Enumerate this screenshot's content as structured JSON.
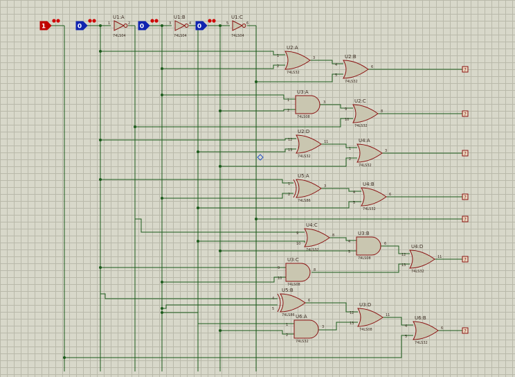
{
  "inputs": [
    {
      "id": "in1",
      "value": "1",
      "color": "#c00000"
    },
    {
      "id": "in2",
      "value": "0",
      "color": "#1024b0"
    },
    {
      "id": "in3",
      "value": "0",
      "color": "#1024b0"
    },
    {
      "id": "in4",
      "value": "0",
      "color": "#1024b0"
    }
  ],
  "inverters": [
    {
      "ref": "U1:A",
      "part": "74LS04",
      "pin_in": "1",
      "pin_out": "2"
    },
    {
      "ref": "U1:B",
      "part": "74LS04",
      "pin_in": "3",
      "pin_out": "4"
    },
    {
      "ref": "U1:C",
      "part": "74LS04",
      "pin_in": "5",
      "pin_out": "6"
    }
  ],
  "gates": [
    {
      "ref": "U2:A",
      "part": "74LS32",
      "pins": [
        "1",
        "2",
        "3"
      ]
    },
    {
      "ref": "U2:B",
      "part": "74LS32",
      "pins": [
        "4",
        "5",
        "6"
      ]
    },
    {
      "ref": "U3:A",
      "part": "74LS08",
      "pins": [
        "1",
        "2",
        "3"
      ]
    },
    {
      "ref": "U2:C",
      "part": "74LS32",
      "pins": [
        "9",
        "10",
        "8"
      ]
    },
    {
      "ref": "U2:D",
      "part": "74LS32",
      "pins": [
        "12",
        "13",
        "11"
      ]
    },
    {
      "ref": "U4:A",
      "part": "74LS32",
      "pins": [
        "1",
        "2",
        "3"
      ]
    },
    {
      "ref": "U5:A",
      "part": "74LS86",
      "pins": [
        "1",
        "2",
        "3"
      ]
    },
    {
      "ref": "U4:B",
      "part": "74LS32",
      "pins": [
        "4",
        "5",
        "6"
      ]
    },
    {
      "ref": "U4:C",
      "part": "74LS32",
      "pins": [
        "9",
        "10",
        "8"
      ]
    },
    {
      "ref": "U3:B",
      "part": "74LS08",
      "pins": [
        "4",
        "5",
        "6"
      ]
    },
    {
      "ref": "U4:D",
      "part": "74LS32",
      "pins": [
        "12",
        "13",
        "11"
      ]
    },
    {
      "ref": "U3:C",
      "part": "74LS08",
      "pins": [
        "9",
        "10",
        "8"
      ]
    },
    {
      "ref": "U5:B",
      "part": "74LS86",
      "pins": [
        "4",
        "5",
        "6"
      ]
    },
    {
      "ref": "U6:A",
      "part": "74LS32",
      "pins": [
        "1",
        "2",
        "3"
      ]
    },
    {
      "ref": "U3:D",
      "part": "74LS08",
      "pins": [
        "12",
        "13",
        "11"
      ]
    },
    {
      "ref": "U6:B",
      "part": "74LS32",
      "pins": [
        "4",
        "5",
        "6"
      ]
    }
  ],
  "outputs": [
    {
      "id": "out1",
      "value": "?"
    },
    {
      "id": "out2",
      "value": "?"
    },
    {
      "id": "out3",
      "value": "?"
    },
    {
      "id": "out4",
      "value": "?"
    },
    {
      "id": "out5",
      "value": "?"
    },
    {
      "id": "out6",
      "value": "?"
    },
    {
      "id": "out7",
      "value": "?"
    }
  ],
  "colors": {
    "wire": "#1a5a1a",
    "gate_fill": "#c9c6b0",
    "gate_stroke": "#8a1010",
    "input_high": "#c00000",
    "input_low": "#1024b0"
  }
}
